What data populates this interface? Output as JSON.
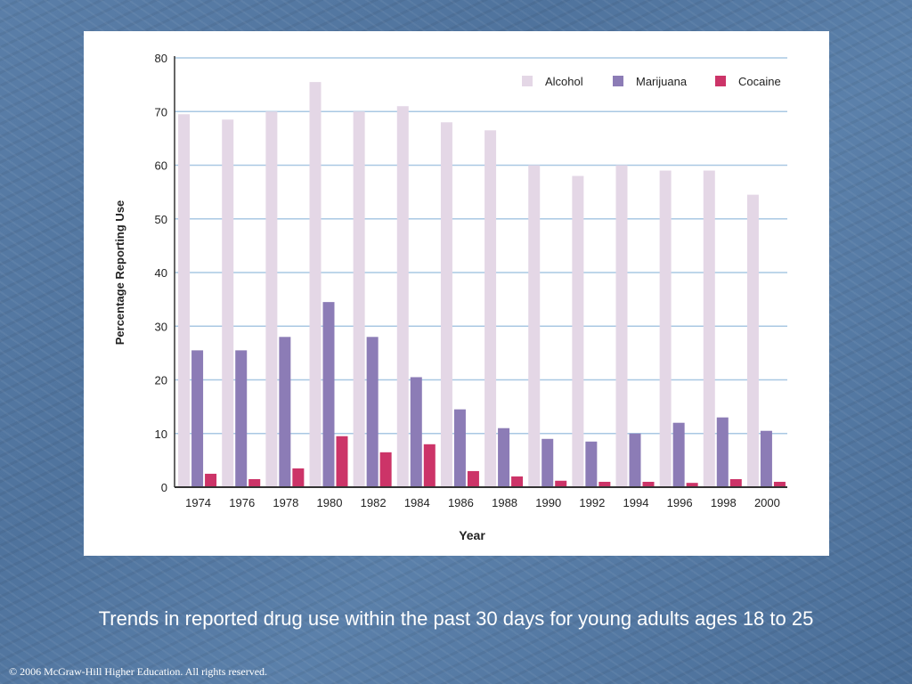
{
  "slide": {
    "caption": "Trends in reported drug use within the past 30 days for young adults ages 18 to 25",
    "copyright": "© 2006 McGraw-Hill Higher Education. All rights reserved."
  },
  "colors": {
    "alcohol": "#e4d7e6",
    "marijuana": "#8c7cb6",
    "cocaine": "#cc3468",
    "grid": "#a9c8e3",
    "axis": "#333333"
  },
  "chart_data": {
    "type": "bar",
    "xlabel": "Year",
    "ylabel": "Percentage Reporting Use",
    "ylim": [
      0,
      80
    ],
    "yticks": [
      0,
      10,
      20,
      30,
      40,
      50,
      60,
      70,
      80
    ],
    "grid": true,
    "legend_position": "top-right",
    "categories": [
      "1974",
      "1976",
      "1978",
      "1980",
      "1982",
      "1984",
      "1986",
      "1988",
      "1990",
      "1992",
      "1994",
      "1996",
      "1998",
      "2000"
    ],
    "series": [
      {
        "name": "Alcohol",
        "color_key": "alcohol",
        "values": [
          69.5,
          68.5,
          70,
          75.5,
          70,
          71,
          68,
          66.5,
          60,
          58,
          60,
          59,
          59,
          54.5
        ]
      },
      {
        "name": "Marijuana",
        "color_key": "marijuana",
        "values": [
          25.5,
          25.5,
          28,
          34.5,
          28,
          20.5,
          14.5,
          11,
          9,
          8.5,
          10,
          12,
          13,
          10.5
        ]
      },
      {
        "name": "Cocaine",
        "color_key": "cocaine",
        "values": [
          2.5,
          1.5,
          3.5,
          9.5,
          6.5,
          8,
          3,
          2,
          1.2,
          1,
          1,
          0.8,
          1.5,
          1
        ]
      }
    ]
  }
}
